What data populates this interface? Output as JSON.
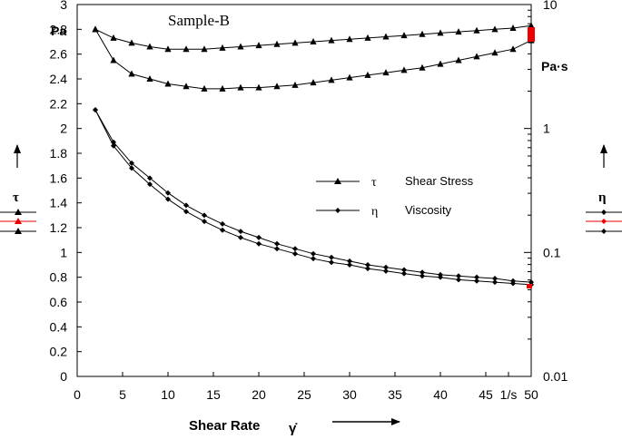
{
  "chart_data": {
    "type": "line",
    "title": "Sample-B",
    "xlabel": "Shear Rate",
    "xlabel_symbol": "γ̇",
    "x_unit": "1/s",
    "left_axis": {
      "symbol": "τ",
      "unit": "Pa",
      "ylim": [
        0,
        3
      ],
      "ticks": [
        "0",
        "0.2",
        "0.4",
        "0.6",
        "0.8",
        "1",
        "1.2",
        "1.4",
        "1.6",
        "1.8",
        "2",
        "2.2",
        "2.4",
        "2.6",
        "2.8",
        "3"
      ]
    },
    "right_axis": {
      "symbol": "η",
      "unit": "Pa·s",
      "scale": "log",
      "ylim": [
        0.01,
        10
      ],
      "ticks": [
        "0.01",
        "0.1",
        "1",
        "10"
      ]
    },
    "xlim": [
      0,
      50
    ],
    "x_ticks": [
      "0",
      "5",
      "10",
      "15",
      "20",
      "25",
      "30",
      "35",
      "40",
      "45",
      "1/s",
      "50"
    ],
    "legend": [
      {
        "symbol": "τ",
        "label": "Shear Stress",
        "marker": "triangle"
      },
      {
        "symbol": "η",
        "label": "Viscosity",
        "marker": "diamond"
      }
    ],
    "x": [
      2,
      4,
      6,
      8,
      10,
      12,
      14,
      16,
      18,
      20,
      22,
      24,
      26,
      28,
      30,
      32,
      34,
      36,
      38,
      40,
      42,
      44,
      46,
      48,
      50
    ],
    "series": [
      {
        "name": "Shear Stress (upper)",
        "axis": "left",
        "marker": "triangle",
        "values": [
          2.8,
          2.73,
          2.69,
          2.66,
          2.64,
          2.64,
          2.64,
          2.65,
          2.66,
          2.67,
          2.68,
          2.69,
          2.7,
          2.71,
          2.72,
          2.73,
          2.74,
          2.75,
          2.76,
          2.77,
          2.78,
          2.79,
          2.8,
          2.81,
          2.83
        ]
      },
      {
        "name": "Shear Stress (lower)",
        "axis": "left",
        "marker": "triangle",
        "values": [
          2.8,
          2.55,
          2.44,
          2.4,
          2.36,
          2.34,
          2.32,
          2.32,
          2.33,
          2.33,
          2.34,
          2.35,
          2.37,
          2.39,
          2.41,
          2.43,
          2.45,
          2.47,
          2.49,
          2.52,
          2.55,
          2.58,
          2.61,
          2.64,
          2.71
        ]
      },
      {
        "name": "Viscosity (upper)",
        "axis": "left",
        "marker": "diamond",
        "values": [
          2.15,
          1.89,
          1.72,
          1.6,
          1.48,
          1.38,
          1.3,
          1.23,
          1.17,
          1.12,
          1.07,
          1.03,
          0.99,
          0.96,
          0.93,
          0.9,
          0.88,
          0.86,
          0.84,
          0.82,
          0.81,
          0.8,
          0.79,
          0.77,
          0.76
        ]
      },
      {
        "name": "Viscosity (lower)",
        "axis": "left",
        "marker": "diamond",
        "values": [
          2.15,
          1.86,
          1.68,
          1.55,
          1.43,
          1.33,
          1.25,
          1.18,
          1.12,
          1.07,
          1.03,
          0.99,
          0.95,
          0.92,
          0.9,
          0.87,
          0.85,
          0.83,
          0.81,
          0.8,
          0.78,
          0.77,
          0.76,
          0.75,
          0.74
        ]
      }
    ]
  }
}
